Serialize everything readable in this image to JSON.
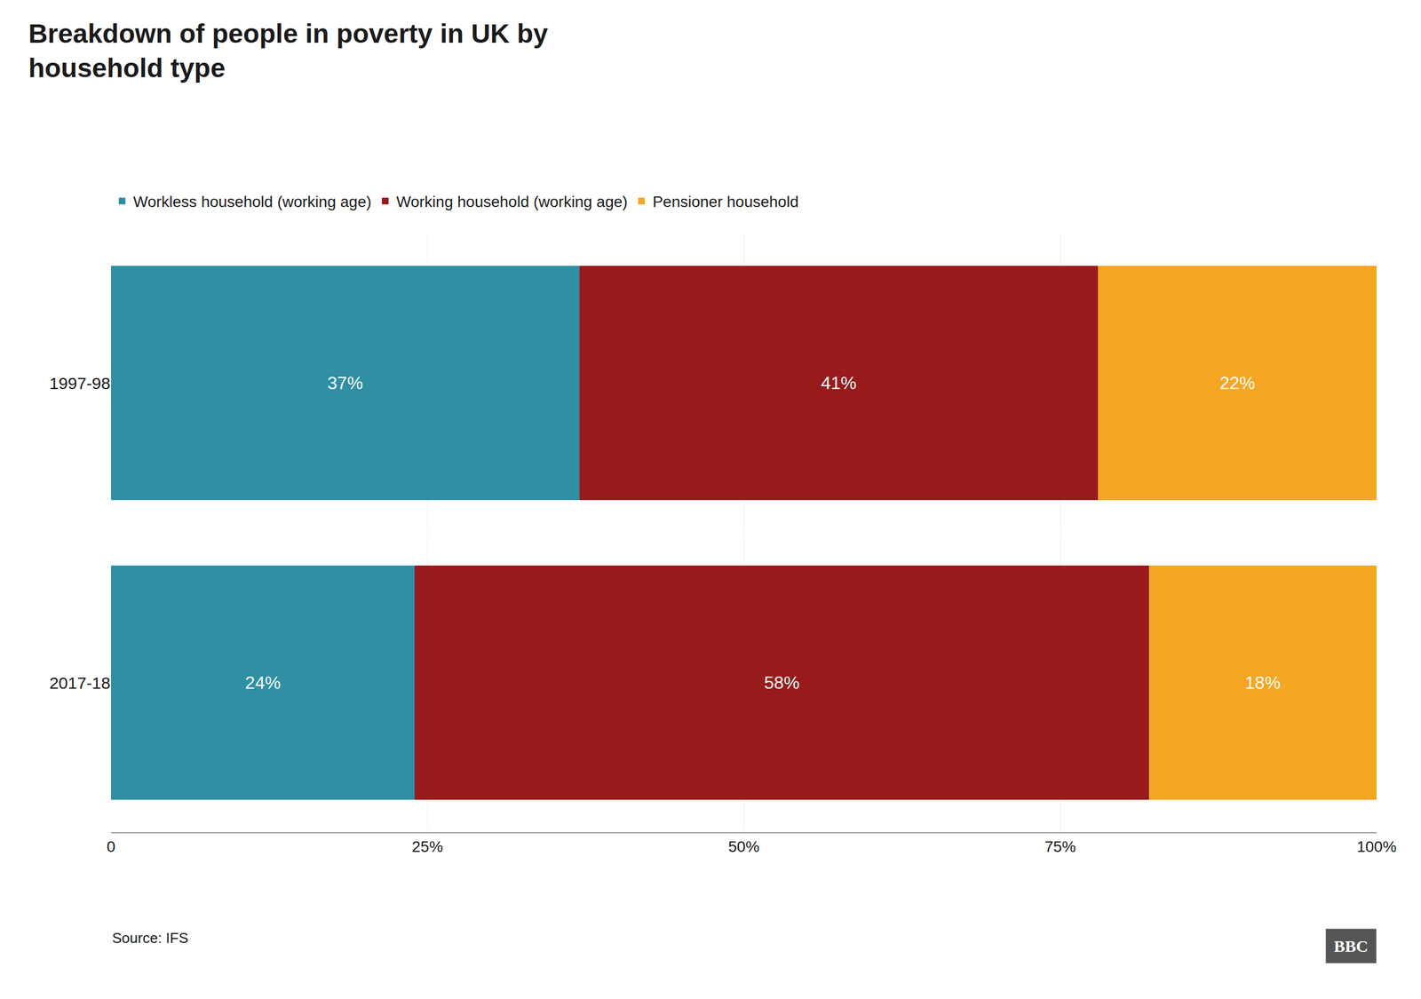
{
  "chart_data": {
    "type": "bar",
    "orientation": "horizontal",
    "stacked": true,
    "title": "Breakdown of people in poverty in UK by\nhousehold type",
    "categories": [
      "2017-18",
      "1997-98"
    ],
    "series": [
      {
        "name": "Workless household (working age)",
        "color": "#2e8fa5",
        "values": [
          24,
          37
        ],
        "value_labels": [
          "24%",
          "37%"
        ]
      },
      {
        "name": "Working household (working age)",
        "color": "#991a1a",
        "values": [
          58,
          41
        ],
        "value_labels": [
          "58%",
          "41%"
        ]
      },
      {
        "name": "Pensioner household",
        "color": "#f5a623",
        "values": [
          18,
          22
        ],
        "value_labels": [
          "18%",
          "22%"
        ]
      }
    ],
    "xlim": [
      0,
      100
    ],
    "xticks": [
      0,
      {
        "value": 25,
        "label": "25%"
      },
      {
        "value": 50,
        "label": "50%"
      },
      {
        "value": 75,
        "label": "75%"
      },
      {
        "value": 100,
        "label": "100%"
      }
    ],
    "grid": true,
    "legend": "top",
    "data_labels": true,
    "annotations": [
      "Source: IFS",
      "BBC"
    ]
  }
}
